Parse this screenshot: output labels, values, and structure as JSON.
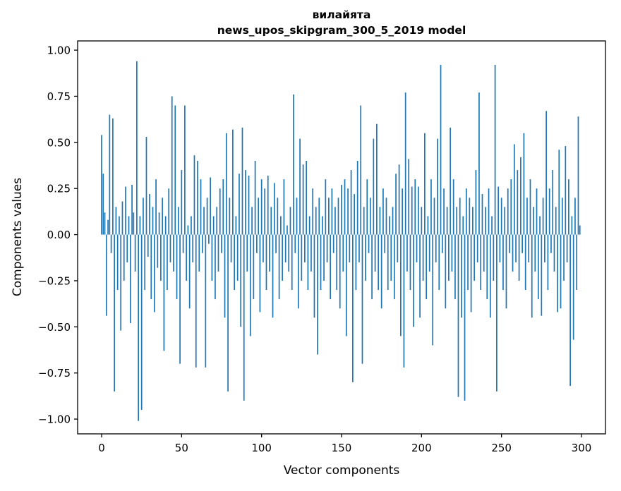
{
  "chart_data": {
    "type": "bar",
    "title": "вилайята",
    "subtitle": "news_upos_skipgram_300_5_2019 model",
    "xlabel": "Vector components",
    "ylabel": "Components values",
    "bar_color": "#1f77b4",
    "xlim": [
      -15,
      315
    ],
    "ylim": [
      -1.08,
      1.05
    ],
    "xticks": [
      {
        "value": 0,
        "label": "0"
      },
      {
        "value": 50,
        "label": "50"
      },
      {
        "value": 100,
        "label": "100"
      },
      {
        "value": 150,
        "label": "150"
      },
      {
        "value": 200,
        "label": "200"
      },
      {
        "value": 250,
        "label": "250"
      },
      {
        "value": 300,
        "label": "300"
      }
    ],
    "yticks": [
      {
        "value": 1.0,
        "label": "1.00"
      },
      {
        "value": 0.75,
        "label": "0.75"
      },
      {
        "value": 0.5,
        "label": "0.50"
      },
      {
        "value": 0.25,
        "label": "0.25"
      },
      {
        "value": 0.0,
        "label": "0.00"
      },
      {
        "value": -0.25,
        "label": "−0.25"
      },
      {
        "value": -0.5,
        "label": "−0.50"
      },
      {
        "value": -0.75,
        "label": "−0.75"
      },
      {
        "value": -1.0,
        "label": "−1.00"
      }
    ],
    "grid": false,
    "legend": null,
    "n_components": 300,
    "values": [
      0.54,
      0.33,
      0.12,
      -0.44,
      0.08,
      0.65,
      -0.1,
      0.63,
      -0.85,
      0.15,
      -0.3,
      0.1,
      -0.52,
      0.18,
      -0.25,
      0.26,
      -0.15,
      0.1,
      -0.48,
      0.27,
      0.12,
      -0.2,
      0.94,
      -1.01,
      0.1,
      -0.95,
      0.2,
      -0.3,
      0.53,
      -0.12,
      0.22,
      -0.35,
      0.15,
      -0.42,
      0.3,
      -0.18,
      0.12,
      -0.25,
      0.2,
      -0.63,
      0.1,
      -0.3,
      0.25,
      -0.15,
      0.75,
      -0.2,
      0.7,
      -0.35,
      0.15,
      -0.7,
      0.35,
      -0.1,
      0.7,
      -0.25,
      0.05,
      -0.4,
      0.1,
      -0.15,
      0.43,
      -0.72,
      0.4,
      -0.2,
      0.3,
      -0.1,
      0.15,
      -0.72,
      0.2,
      -0.05,
      0.31,
      -0.25,
      0.1,
      -0.35,
      0.15,
      -0.2,
      0.25,
      -0.1,
      0.3,
      -0.45,
      0.55,
      -0.85,
      0.2,
      -0.15,
      0.57,
      -0.3,
      0.1,
      -0.25,
      0.33,
      -0.5,
      0.58,
      -0.9,
      0.35,
      -0.2,
      0.32,
      -0.55,
      0.15,
      -0.35,
      0.4,
      -0.1,
      0.2,
      -0.42,
      0.3,
      -0.15,
      0.25,
      -0.3,
      0.32,
      -0.2,
      0.15,
      -0.45,
      0.28,
      -0.1,
      0.2,
      -0.35,
      0.1,
      -0.25,
      0.3,
      -0.15,
      0.05,
      -0.2,
      0.15,
      -0.3,
      0.76,
      -0.1,
      0.2,
      -0.4,
      0.52,
      -0.25,
      0.38,
      -0.15,
      0.4,
      -0.3,
      0.1,
      -0.2,
      0.25,
      -0.45,
      0.15,
      -0.65,
      0.2,
      -0.3,
      0.1,
      -0.25,
      0.3,
      -0.15,
      0.2,
      -0.35,
      0.25,
      -0.1,
      0.15,
      -0.3,
      0.2,
      -0.4,
      0.27,
      -0.2,
      0.3,
      -0.55,
      0.25,
      -0.15,
      0.35,
      -0.8,
      0.22,
      -0.3,
      0.4,
      -0.15,
      0.7,
      -0.7,
      0.15,
      -0.25,
      0.3,
      -0.1,
      0.2,
      -0.35,
      0.52,
      -0.2,
      0.6,
      -0.3,
      0.15,
      -0.4,
      0.25,
      -0.1,
      0.2,
      -0.3,
      0.1,
      -0.25,
      0.15,
      -0.35,
      0.33,
      -0.15,
      0.38,
      -0.55,
      0.25,
      -0.72,
      0.77,
      -0.2,
      0.41,
      -0.3,
      0.26,
      -0.5,
      0.3,
      -0.15,
      0.26,
      -0.45,
      0.15,
      -0.25,
      0.55,
      -0.35,
      0.1,
      -0.2,
      0.3,
      -0.6,
      0.2,
      -0.15,
      0.52,
      -0.3,
      0.92,
      -0.1,
      0.25,
      -0.4,
      0.15,
      -0.25,
      0.58,
      -0.2,
      0.3,
      -0.35,
      0.15,
      -0.88,
      0.2,
      -0.45,
      0.1,
      -0.9,
      0.25,
      -0.3,
      0.2,
      -0.42,
      0.15,
      -0.25,
      0.35,
      -0.15,
      0.77,
      -0.3,
      0.22,
      -0.2,
      0.15,
      -0.35,
      0.25,
      -0.45,
      0.1,
      -0.25,
      0.92,
      -0.85,
      0.26,
      -0.15,
      0.2,
      -0.3,
      0.15,
      -0.4,
      0.25,
      -0.1,
      0.3,
      -0.2,
      0.49,
      -0.15,
      0.35,
      -0.25,
      0.42,
      -0.1,
      0.55,
      -0.3,
      0.2,
      -0.15,
      0.3,
      -0.45,
      0.15,
      -0.2,
      0.25,
      -0.35,
      0.1,
      -0.44,
      0.2,
      -0.15,
      0.67,
      -0.3,
      0.25,
      -0.1,
      0.35,
      -0.2,
      0.15,
      -0.42,
      0.46,
      -0.4,
      0.2,
      -0.25,
      0.48,
      -0.15,
      0.3,
      -0.82,
      0.1,
      -0.57,
      0.2,
      -0.3,
      0.64,
      0.05
    ]
  }
}
